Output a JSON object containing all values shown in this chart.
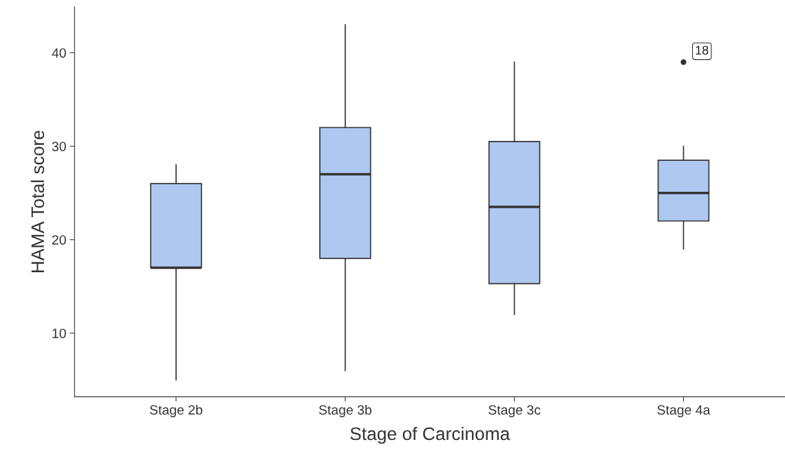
{
  "chart_data": {
    "type": "box",
    "xlabel": "Stage of Carcinoma",
    "ylabel": "HAMA Total score",
    "categories": [
      "Stage 2b",
      "Stage 3b",
      "Stage 3c",
      "Stage 4a"
    ],
    "color": "#aec8f0",
    "boxes": [
      {
        "low": 5,
        "q1": 17,
        "median": 17,
        "q3": 26,
        "high": 28
      },
      {
        "low": 6,
        "q1": 18,
        "median": 27,
        "q3": 32,
        "high": 43
      },
      {
        "low": 12,
        "q1": 15.3,
        "median": 23.5,
        "q3": 30.5,
        "high": 39
      },
      {
        "low": 19,
        "q1": 22,
        "median": 25,
        "q3": 28.5,
        "high": 30,
        "outliers": [
          39
        ]
      }
    ],
    "annotations": [
      "18"
    ],
    "ylim": [
      3.2,
      44.9
    ],
    "yticks": [
      10,
      20,
      30,
      40
    ],
    "grid": false
  }
}
